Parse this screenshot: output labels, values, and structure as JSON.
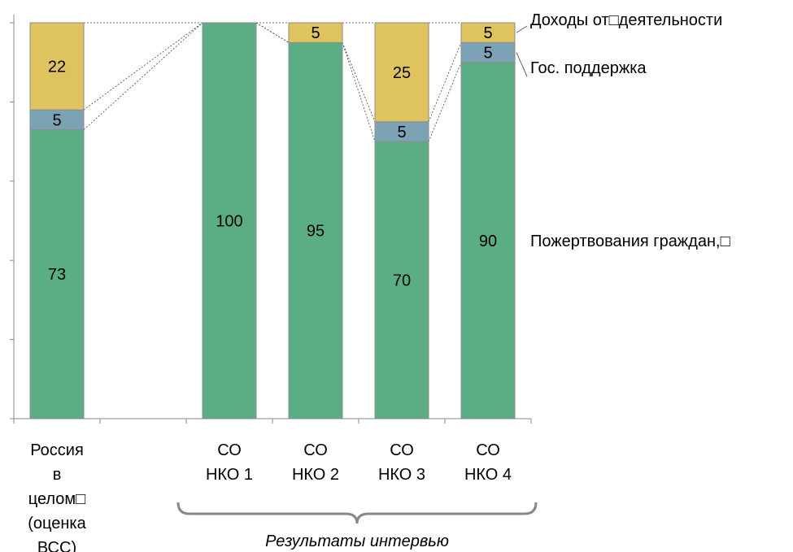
{
  "chart_data": {
    "type": "bar",
    "stacked": true,
    "normalized_percent": true,
    "ylim": [
      0,
      100
    ],
    "categories": [
      [
        "Россия",
        "в",
        "целом□",
        "(оценка",
        "ВСС)"
      ],
      [
        "СО",
        "НКО 1"
      ],
      [
        "СО",
        "НКО 2"
      ],
      [
        "СО",
        "НКО 3"
      ],
      [
        "СО",
        "НКО 4"
      ]
    ],
    "slot_index": [
      0,
      2,
      3,
      4,
      5
    ],
    "slot_count": 6,
    "series": [
      {
        "name": "Пожертвования граждан,□",
        "values": [
          73,
          100,
          95,
          70,
          90
        ],
        "color": "#5bae84"
      },
      {
        "name": "Гос. поддержка",
        "values": [
          5,
          0,
          0,
          5,
          5
        ],
        "color": "#7ba3b5"
      },
      {
        "name": "Доходы от□деятельности",
        "values": [
          22,
          0,
          5,
          25,
          5
        ],
        "color": "#dfc35e"
      }
    ],
    "bracket_label": "Результаты интервью",
    "grid": false,
    "legend": "right-inline"
  }
}
